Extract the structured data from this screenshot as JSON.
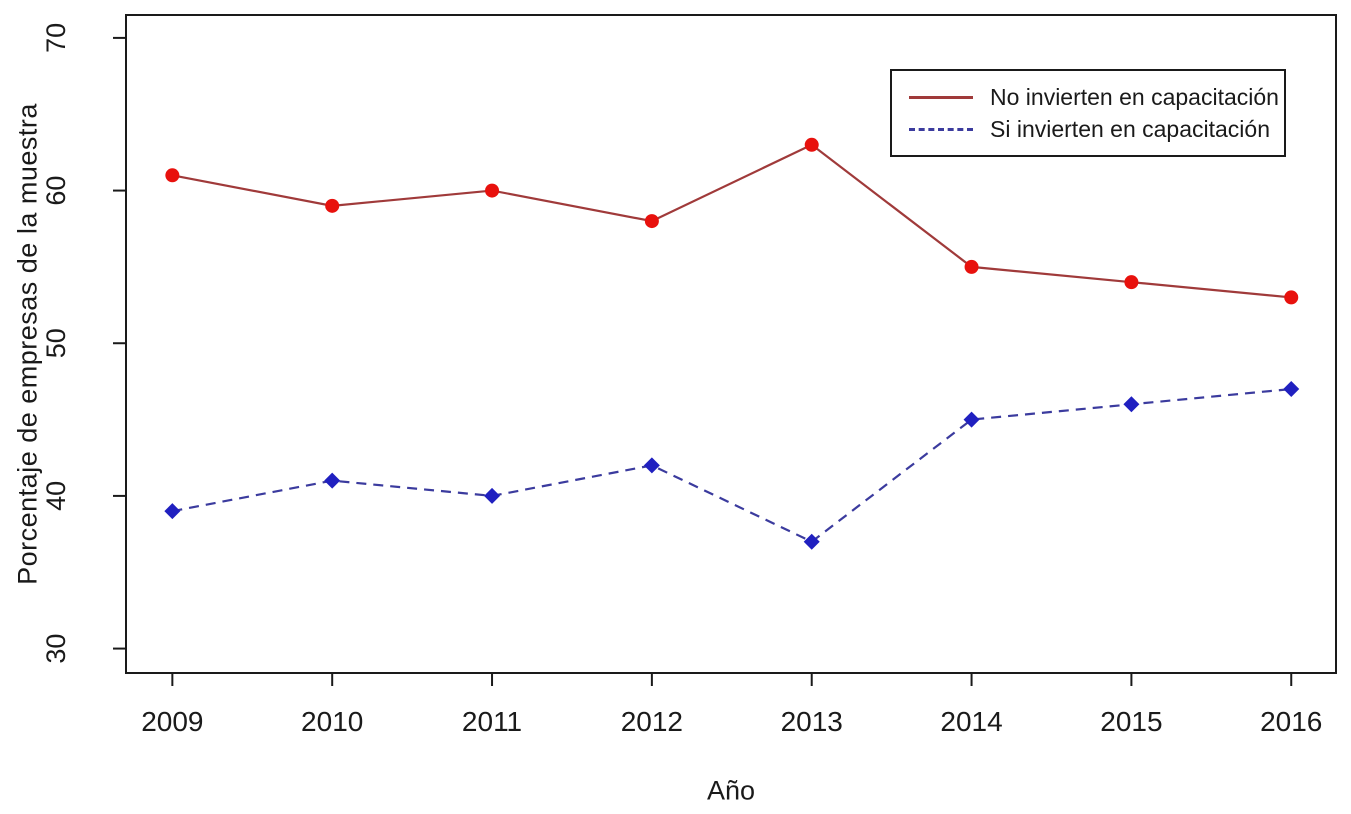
{
  "figure": {
    "background": "#ffffff",
    "axis_color": "#1a1a1a",
    "text_color": "#1a1a1a"
  },
  "chart_data": {
    "type": "line",
    "title": "",
    "xlabel": "Año",
    "ylabel": "Porcentaje de empresas de la muestra",
    "x": [
      2009,
      2010,
      2011,
      2012,
      2013,
      2014,
      2015,
      2016
    ],
    "xtick_labels": [
      "2009",
      "2010",
      "2011",
      "2012",
      "2013",
      "2014",
      "2015",
      "2016"
    ],
    "yticks": [
      30,
      40,
      50,
      60,
      70
    ],
    "ytick_labels": [
      "30",
      "40",
      "50",
      "60",
      "70"
    ],
    "xlim": [
      2008.71,
      2016.28
    ],
    "ylim": [
      28.4,
      71.5
    ],
    "grid": false,
    "legend_position": "top-right",
    "series": [
      {
        "name": "No invierten en capacitación",
        "values": [
          61,
          59,
          60,
          58,
          63,
          55,
          54,
          53
        ],
        "line_color": "#A03A3A",
        "marker_color": "#E8110D",
        "line_style": "solid",
        "marker": "circle"
      },
      {
        "name": "Si invierten en capacitación",
        "values": [
          39,
          41,
          40,
          42,
          37,
          45,
          46,
          47
        ],
        "line_color": "#3B3B9E",
        "marker_color": "#2020C0",
        "line_style": "dashed",
        "marker": "diamond"
      }
    ]
  }
}
